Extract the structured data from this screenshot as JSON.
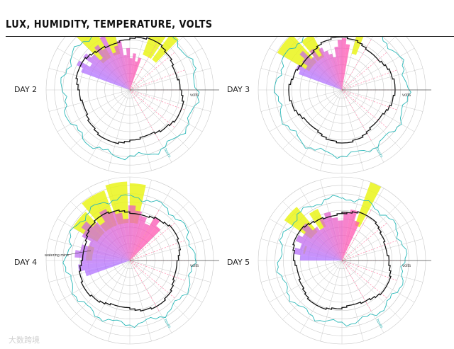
{
  "title": "LUX, HUMIDITY, TEMPERATURE, VOLTS",
  "watermark": "大数跨境",
  "palette": {
    "lux": "#eaf51a",
    "humidity_start": "#b070ff",
    "humidity_end": "#ff55b0",
    "temperature": "#ff8fb0",
    "volts": "#111111",
    "trace": "#2bb8b8",
    "grid": "#c8c8c8"
  },
  "axis_labels": {
    "volts": "volts",
    "hours": "hours"
  },
  "chart_data": [
    {
      "type": "radial",
      "day_label": "DAY 2",
      "lux_sectors": [
        {
          "start_deg": 20,
          "end_deg": 34,
          "level": 0.92
        },
        {
          "start_deg": 36,
          "end_deg": 44,
          "level": 0.8
        },
        {
          "start_deg": 315,
          "end_deg": 330,
          "level": 0.88
        },
        {
          "start_deg": 335,
          "end_deg": 345,
          "level": 0.75
        }
      ],
      "humidity_rays": [
        0.62,
        0.7,
        0.55,
        0.68,
        0.6,
        0.5,
        0.66,
        0.58,
        0.72,
        0.48,
        0.55,
        0.6,
        0.42,
        0.5,
        0.38,
        0.44,
        0.35,
        0.4
      ],
      "humidity_span_deg": [
        290,
        20
      ],
      "volts_level": 0.62,
      "trace_level": 0.8
    },
    {
      "type": "radial",
      "day_label": "DAY 3",
      "lux_sectors": [
        {
          "start_deg": 300,
          "end_deg": 318,
          "level": 0.85
        },
        {
          "start_deg": 320,
          "end_deg": 332,
          "level": 0.72
        },
        {
          "start_deg": 15,
          "end_deg": 22,
          "level": 0.9
        }
      ],
      "humidity_rays": [
        0.55,
        0.6,
        0.5,
        0.58,
        0.66,
        0.52,
        0.6,
        0.48,
        0.56,
        0.5,
        0.45,
        0.4,
        0.52,
        0.6,
        0.62,
        0.55
      ],
      "humidity_span_deg": [
        290,
        10
      ],
      "volts_level": 0.6,
      "trace_level": 0.78
    },
    {
      "type": "radial",
      "day_label": "DAY 4",
      "lux_sectors": [
        {
          "start_deg": 300,
          "end_deg": 318,
          "level": 0.75
        },
        {
          "start_deg": 320,
          "end_deg": 340,
          "level": 0.85
        },
        {
          "start_deg": 342,
          "end_deg": 358,
          "level": 0.9
        },
        {
          "start_deg": 0,
          "end_deg": 12,
          "level": 0.88
        },
        {
          "start_deg": 270,
          "end_deg": 290,
          "level": 0.5
        }
      ],
      "humidity_rays": [
        0.55,
        0.62,
        0.58,
        0.66,
        0.6,
        0.52,
        0.64,
        0.7,
        0.6,
        0.55,
        0.68,
        0.62,
        0.58,
        0.5,
        0.66,
        0.6,
        0.55,
        0.48,
        0.6,
        0.52
      ],
      "humidity_span_deg": [
        250,
        45
      ],
      "volts_level": 0.6,
      "trace_level": 0.76,
      "annotation": "watering mins"
    },
    {
      "type": "radial",
      "day_label": "DAY 5",
      "lux_sectors": [
        {
          "start_deg": 305,
          "end_deg": 320,
          "level": 0.8
        },
        {
          "start_deg": 325,
          "end_deg": 335,
          "level": 0.65
        },
        {
          "start_deg": 20,
          "end_deg": 28,
          "level": 0.95
        },
        {
          "start_deg": 280,
          "end_deg": 292,
          "level": 0.45
        }
      ],
      "humidity_rays": [
        0.5,
        0.58,
        0.52,
        0.6,
        0.55,
        0.62,
        0.5,
        0.45,
        0.55,
        0.6,
        0.52,
        0.48,
        0.58,
        0.62,
        0.5
      ],
      "humidity_span_deg": [
        270,
        25
      ],
      "volts_level": 0.58,
      "trace_level": 0.75
    }
  ]
}
